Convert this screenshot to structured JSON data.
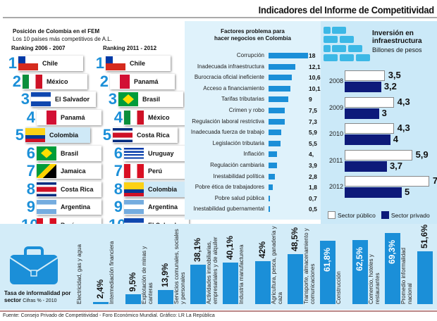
{
  "header": {
    "title": "Indicadores del Informe de Competitividad"
  },
  "ranking": {
    "title": "Posición de Colombia en el FEM",
    "subtitle": "Los 10 países más competitivos de A.L.",
    "columns": [
      {
        "label": "Ranking 2006 - 2007",
        "items": [
          {
            "rank": "1",
            "country": "Chile"
          },
          {
            "rank": "2",
            "country": "México"
          },
          {
            "rank": "3",
            "country": "El Salvador"
          },
          {
            "rank": "4",
            "country": "Panamá"
          },
          {
            "rank": "5",
            "country": "Colombia",
            "highlight": true
          },
          {
            "rank": "6",
            "country": "Brasil"
          },
          {
            "rank": "7",
            "country": "Jamaica"
          },
          {
            "rank": "8",
            "country": "Costa Rica"
          },
          {
            "rank": "9",
            "country": "Argentina"
          },
          {
            "rank": "10",
            "country": "Perú"
          }
        ]
      },
      {
        "label": "Ranking 2011 - 2012",
        "items": [
          {
            "rank": "1",
            "country": "Chile"
          },
          {
            "rank": "2",
            "country": "Panamá"
          },
          {
            "rank": "3",
            "country": "Brasil"
          },
          {
            "rank": "4",
            "country": "México"
          },
          {
            "rank": "5",
            "country": "Costa Rica"
          },
          {
            "rank": "6",
            "country": "Uruguay"
          },
          {
            "rank": "7",
            "country": "Perú"
          },
          {
            "rank": "8",
            "country": "Colombia",
            "highlight": true
          },
          {
            "rank": "9",
            "country": "Argentina"
          },
          {
            "rank": "10",
            "country": "El Salvador"
          }
        ]
      }
    ]
  },
  "chart_data": [
    {
      "type": "bar",
      "orientation": "horizontal",
      "title": "Factores problema para hacer negocios en Colombia",
      "categories": [
        "Corrupción",
        "Inadecuada infraestructura",
        "Burocracia oficial ineficiente",
        "Acceso a financiamiento",
        "Tarifas tributarias",
        "Crimen y robo",
        "Regulación laboral restrictiva",
        "Inadecuada fuerza de trabajo",
        "Legislación tributaria",
        "Inflación",
        "Regulación cambiaria",
        "Inestabilidad política",
        "Pobre ética de trabajadores",
        "Pobre salud pública",
        "Inestabilidad gubernamental"
      ],
      "values": [
        18,
        12.1,
        10.6,
        10.1,
        9,
        7.5,
        7.3,
        5.9,
        5.5,
        4,
        3.9,
        2.8,
        1.8,
        0.7,
        0.5
      ],
      "labels": [
        "18",
        "12,1",
        "10,6",
        "10,1",
        "9",
        "7,5",
        "7,3",
        "5,9",
        "5,5",
        "4,",
        "3,9",
        "2,8",
        "1,8",
        "0,7",
        "0,5"
      ],
      "color": "#1b8fd8"
    },
    {
      "type": "bar",
      "orientation": "horizontal",
      "title": "Inversión en infraestructura",
      "subtitle": "Billones de pesos",
      "categories": [
        "2008",
        "2009",
        "2010",
        "2011",
        "2012"
      ],
      "series": [
        {
          "name": "Sector público",
          "values": [
            3.5,
            4.3,
            4.3,
            5.9,
            7.4
          ],
          "labels": [
            "3,5",
            "4,3",
            "4,3",
            "5,9",
            "7,4"
          ],
          "color": "#ffffff"
        },
        {
          "name": "Sector privado",
          "values": [
            3.2,
            3,
            4,
            3.7,
            5
          ],
          "labels": [
            "3,2",
            "3",
            "4",
            "3,7",
            "5"
          ],
          "color": "#0d1a7a"
        }
      ],
      "legend": "bottom"
    },
    {
      "type": "bar",
      "orientation": "vertical",
      "title": "Tasa de informalidad por sector",
      "subtitle": "Cifras % - 2010",
      "categories": [
        "Electricidad, gas y agua",
        "Intermediación financiera",
        "Explotación de minas y canteras",
        "Servicios comunales, sociales y personales",
        "Actividades inmobiliarias, empresariales y de alquiler",
        "Industria manufacturera",
        "Agricultura, pesca, ganadería y caza",
        "Transporte, almacenamiento y comunicaciones",
        "Construcción",
        "Comercio, hoteles y restaurantes",
        "Promedio informalidad nacional"
      ],
      "values": [
        2.4,
        9.5,
        13.9,
        38.1,
        40.1,
        42,
        48.5,
        61.8,
        62.5,
        69.3,
        51.6
      ],
      "labels": [
        "2,4%",
        "9,5%",
        "13,9%",
        "38,1%",
        "40,1%",
        "42%",
        "48,5%",
        "61,8%",
        "62,5%",
        "69,3%",
        "51,6%"
      ],
      "color": "#1b8fd8"
    }
  ],
  "source": "Fuente: Consejo Privado de Competitividad - Foro Económico Mundial. Gráfico: LR La República"
}
